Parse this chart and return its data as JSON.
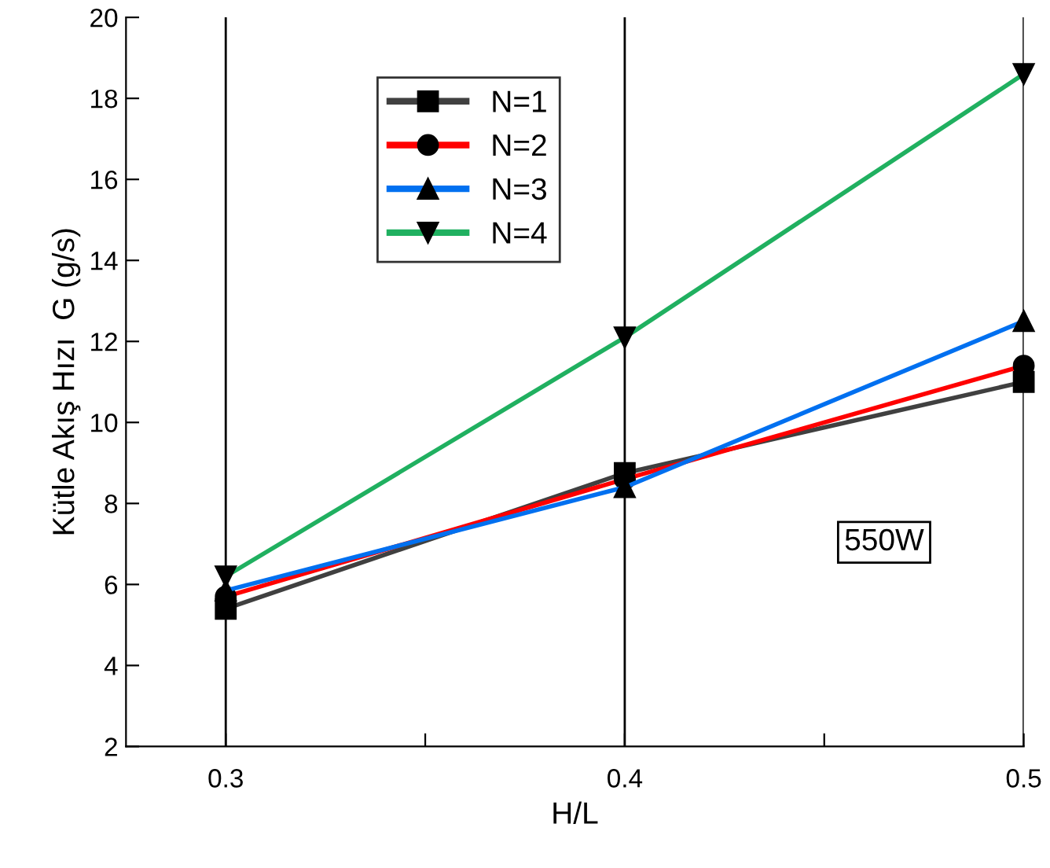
{
  "chart_data": {
    "type": "line",
    "xlabel": "H/L",
    "ylabel": "Kütle Akış Hızı  G (g/s)",
    "x": [
      0.3,
      0.4,
      0.5
    ],
    "series": [
      {
        "name": "N=1",
        "color": "#404040",
        "values": [
          5.4,
          8.75,
          11.0
        ],
        "marker": "square"
      },
      {
        "name": "N=2",
        "color": "#ff0000",
        "values": [
          5.7,
          8.6,
          11.4
        ],
        "marker": "circle"
      },
      {
        "name": "N=3",
        "color": "#0070f0",
        "values": [
          5.85,
          8.4,
          12.5
        ],
        "marker": "triangle"
      },
      {
        "name": "N=4",
        "color": "#20b060",
        "values": [
          6.2,
          12.1,
          18.6
        ],
        "marker": "triangle_down"
      }
    ],
    "xlim": [
      0.275,
      0.5
    ],
    "xticks": [
      0.3,
      {
        "value": 0.35,
        "label": null
      },
      0.4,
      {
        "value": 0.45,
        "label": null
      },
      0.5
    ],
    "ylim": [
      2,
      20
    ],
    "yticks": [
      2,
      4,
      6,
      8,
      10,
      12,
      14,
      16,
      18,
      20
    ],
    "grid": "x",
    "legend": "top left",
    "line_style": "solid",
    "annotations": [
      "550W"
    ]
  }
}
